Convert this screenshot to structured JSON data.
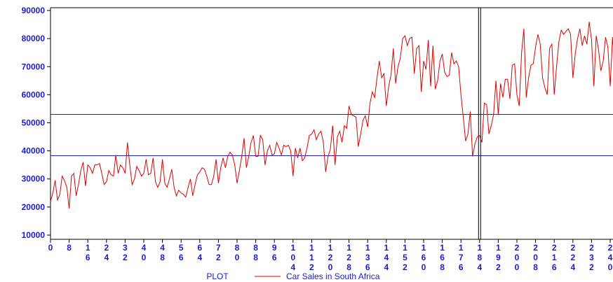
{
  "chart_data": {
    "type": "line",
    "legend_label": "PLOT",
    "xlim": [
      0,
      241.2
    ],
    "ylim": [
      8500,
      91000
    ],
    "xticks": [
      0,
      8,
      16,
      24,
      32,
      40,
      48,
      56,
      64,
      72,
      80,
      88,
      96,
      104,
      112,
      120,
      128,
      136,
      144,
      152,
      160,
      168,
      176,
      184,
      192,
      200,
      208,
      216,
      224,
      232,
      240
    ],
    "yticks": [
      10000,
      20000,
      30000,
      40000,
      50000,
      60000,
      70000,
      80000,
      90000
    ],
    "href": [
      53000,
      38300
    ],
    "href_color": "#2020d0",
    "vref": [
      184
    ],
    "vref_color": "#000000",
    "x": [
      0,
      1,
      2,
      3,
      4,
      5,
      6,
      7,
      8,
      9,
      10,
      11,
      12,
      13,
      14,
      15,
      16,
      17,
      18,
      19,
      20,
      21,
      22,
      23,
      24,
      25,
      26,
      27,
      28,
      29,
      30,
      31,
      32,
      33,
      34,
      35,
      36,
      37,
      38,
      39,
      40,
      41,
      42,
      43,
      44,
      45,
      46,
      47,
      48,
      49,
      50,
      51,
      52,
      53,
      54,
      55,
      56,
      57,
      58,
      59,
      60,
      61,
      62,
      63,
      64,
      65,
      66,
      67,
      68,
      69,
      70,
      71,
      72,
      73,
      74,
      75,
      76,
      77,
      78,
      79,
      80,
      81,
      82,
      83,
      84,
      85,
      86,
      87,
      88,
      89,
      90,
      91,
      92,
      93,
      94,
      95,
      96,
      97,
      98,
      99,
      100,
      101,
      102,
      103,
      104,
      105,
      106,
      107,
      108,
      109,
      110,
      111,
      112,
      113,
      114,
      115,
      116,
      117,
      118,
      119,
      120,
      121,
      122,
      123,
      124,
      125,
      126,
      127,
      128,
      129,
      130,
      131,
      132,
      133,
      134,
      135,
      136,
      137,
      138,
      139,
      140,
      141,
      142,
      143,
      144,
      145,
      146,
      147,
      148,
      149,
      150,
      151,
      152,
      153,
      154,
      155,
      156,
      157,
      158,
      159,
      160,
      161,
      162,
      163,
      164,
      165,
      166,
      167,
      168,
      169,
      170,
      171,
      172,
      173,
      174,
      175,
      176,
      177,
      178,
      179,
      180,
      181,
      182,
      183,
      184,
      185,
      186,
      187,
      188,
      189,
      190,
      191,
      192,
      193,
      194,
      195,
      196,
      197,
      198,
      199,
      200,
      201,
      202,
      203,
      204,
      205,
      206,
      207,
      208,
      209,
      210,
      211,
      212,
      213,
      214,
      215,
      216,
      217,
      218,
      219,
      220,
      221,
      222,
      223,
      224,
      225,
      226,
      227,
      228,
      229,
      230,
      231,
      232,
      233,
      234,
      235,
      236,
      237,
      238,
      239,
      240,
      241,
      242
    ],
    "series": [
      {
        "name": "Car Sales in South Africa",
        "color": "#e00000",
        "values": [
          22000,
          25000,
          29500,
          22500,
          24500,
          31000,
          29500,
          27000,
          19500,
          31000,
          32000,
          24000,
          28000,
          33000,
          36000,
          27500,
          35000,
          34000,
          32000,
          35000,
          35000,
          35500,
          32000,
          28000,
          29000,
          33000,
          31500,
          31000,
          38500,
          32000,
          35000,
          34000,
          32000,
          43000,
          35000,
          28000,
          30000,
          34500,
          33000,
          31000,
          32000,
          37000,
          31500,
          32000,
          37500,
          29000,
          27000,
          29000,
          37000,
          28500,
          27000,
          30000,
          33500,
          27000,
          24000,
          26000,
          25000,
          24500,
          23500,
          27000,
          30000,
          24000,
          28000,
          31500,
          32500,
          34000,
          33500,
          31000,
          28000,
          28000,
          31000,
          37000,
          28500,
          34000,
          37500,
          34000,
          38000,
          39500,
          38500,
          35000,
          28500,
          33000,
          38000,
          44500,
          34000,
          38000,
          43000,
          45500,
          38000,
          38000,
          45500,
          44000,
          35000,
          40000,
          42000,
          38500,
          39000,
          43000,
          41000,
          38500,
          42000,
          41500,
          42000,
          40000,
          31000,
          41000,
          37500,
          41000,
          36500,
          37500,
          41000,
          45500,
          46000,
          47500,
          44000,
          46000,
          47000,
          43000,
          32500,
          38000,
          40500,
          49000,
          35000,
          45000,
          47000,
          43000,
          49000,
          48000,
          56000,
          53000,
          52500,
          52000,
          41500,
          46000,
          51000,
          52500,
          48500,
          57000,
          61000,
          59000,
          66000,
          72000,
          66000,
          67500,
          56000,
          63000,
          67000,
          76500,
          64000,
          70000,
          73000,
          80000,
          81000,
          77500,
          80000,
          80500,
          67500,
          76500,
          77500,
          61000,
          72000,
          69000,
          79500,
          63000,
          77500,
          62000,
          65000,
          72000,
          74500,
          68000,
          66500,
          67000,
          75000,
          71000,
          72000,
          70000,
          60000,
          52000,
          43500,
          46000,
          54000,
          38000,
          42500,
          45000,
          45500,
          43000,
          57000,
          56500,
          46000,
          49000,
          53000,
          65000,
          53000,
          64000,
          59000,
          65500,
          65500,
          58500,
          70500,
          71000,
          60000,
          56000,
          75000,
          83500,
          59000,
          66000,
          70500,
          71000,
          77000,
          81500,
          78000,
          66000,
          62500,
          60000,
          76500,
          78000,
          60000,
          70000,
          79000,
          83000,
          81500,
          82500,
          83500,
          81500,
          66000,
          74500,
          80000,
          83500,
          77500,
          81000,
          78000,
          86000,
          79500,
          63000,
          81000,
          76000,
          68500,
          72000,
          80500,
          77000,
          63000,
          80500,
          69000
        ]
      }
    ]
  }
}
